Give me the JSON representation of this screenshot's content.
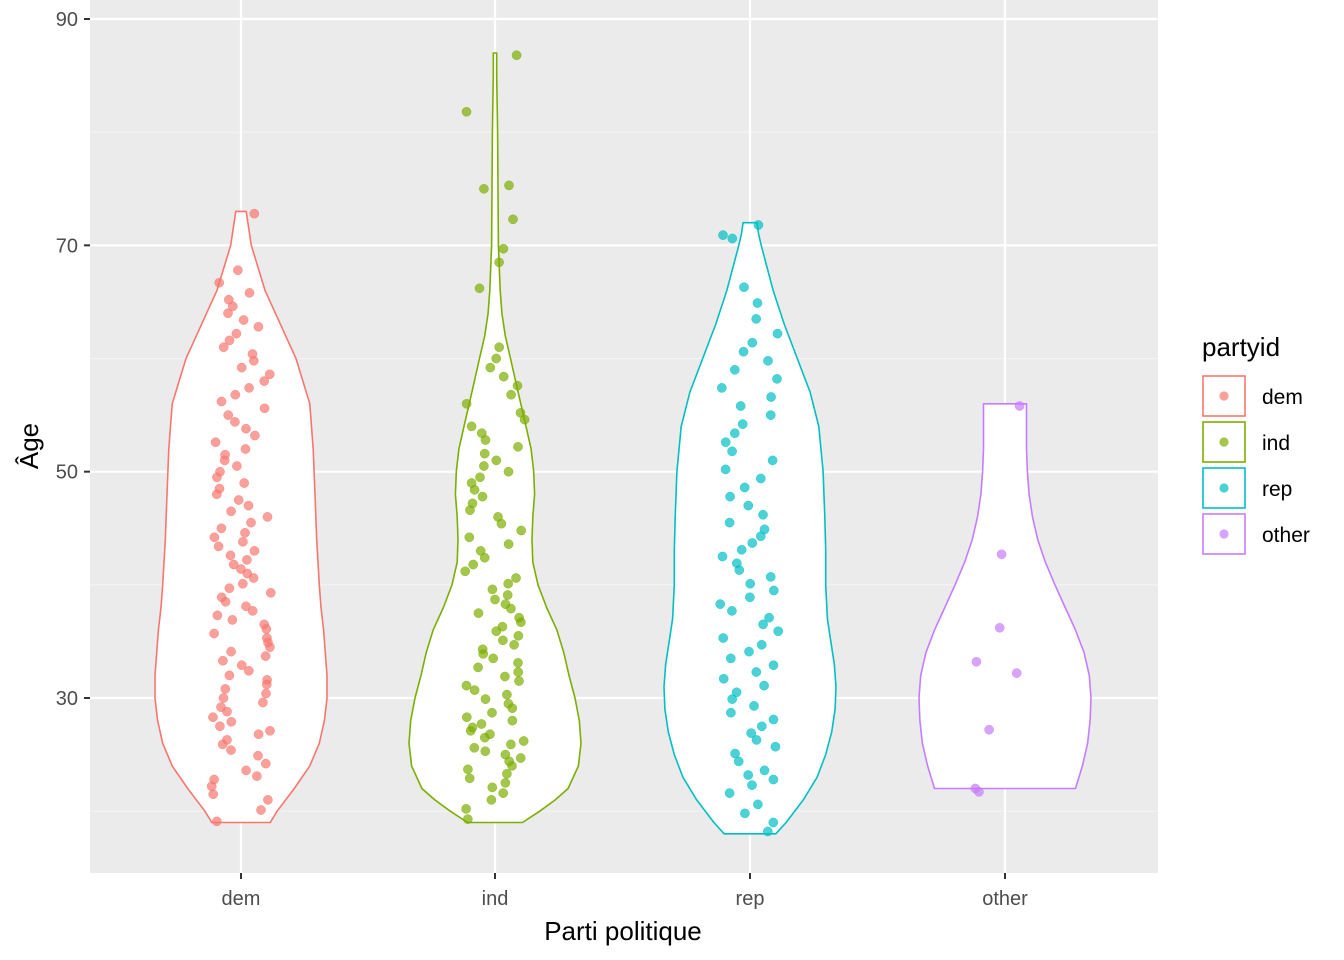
{
  "chart_data": {
    "type": "violin",
    "xlabel": "Parti politique",
    "ylabel": "Âge",
    "categories": [
      "dem",
      "ind",
      "rep",
      "other"
    ],
    "y_ticks": [
      30,
      50,
      70,
      90
    ],
    "y_tick_labels": [
      "30",
      "50",
      "70",
      "90"
    ],
    "ylim": [
      14.5,
      90.2
    ],
    "grid": true,
    "legend": {
      "title": "partyid",
      "position": "right",
      "entries": [
        "dem",
        "ind",
        "rep",
        "other"
      ]
    },
    "colors": {
      "dem": "#F8766D",
      "ind": "#7CAE00",
      "rep": "#00BFC4",
      "other": "#C77CFF",
      "panel": "#EBEBEB",
      "grid_major": "#FFFFFF",
      "grid_minor": "#F5F5F5"
    },
    "series": [
      {
        "name": "dem",
        "min": 19,
        "max": 73,
        "density_profile": [
          [
            19,
            0.34
          ],
          [
            20,
            0.42
          ],
          [
            22,
            0.62
          ],
          [
            24,
            0.8
          ],
          [
            26,
            0.91
          ],
          [
            28,
            0.97
          ],
          [
            30,
            1.0
          ],
          [
            32,
            1.0
          ],
          [
            34,
            0.98
          ],
          [
            36,
            0.96
          ],
          [
            38,
            0.93
          ],
          [
            40,
            0.91
          ],
          [
            44,
            0.88
          ],
          [
            48,
            0.86
          ],
          [
            52,
            0.84
          ],
          [
            56,
            0.8
          ],
          [
            58,
            0.72
          ],
          [
            60,
            0.64
          ],
          [
            62,
            0.52
          ],
          [
            64,
            0.4
          ],
          [
            66,
            0.28
          ],
          [
            68,
            0.2
          ],
          [
            70,
            0.12
          ],
          [
            72,
            0.08
          ],
          [
            73,
            0.06
          ]
        ],
        "points": [
          19.1,
          20.1,
          21,
          21.5,
          22.2,
          22.8,
          23.1,
          23.6,
          24.2,
          24.9,
          25.4,
          25.9,
          26.3,
          26.8,
          27.1,
          27.5,
          27.9,
          28.3,
          28.8,
          29.2,
          29.6,
          30,
          30.4,
          30.8,
          31.2,
          31.6,
          32,
          32.4,
          32.9,
          33.3,
          33.7,
          34.1,
          34.5,
          34.9,
          35.3,
          35.7,
          36.1,
          36.5,
          36.9,
          37.3,
          37.7,
          38.1,
          38.5,
          38.9,
          39.3,
          39.7,
          40.1,
          40.6,
          41,
          41.4,
          41.8,
          42.2,
          42.6,
          43,
          43.4,
          43.8,
          44.2,
          44.6,
          45,
          45.5,
          46,
          46.5,
          47,
          47.5,
          48,
          48.5,
          49,
          49.5,
          50,
          50.5,
          51,
          51.5,
          52,
          52.6,
          53.2,
          53.8,
          54.4,
          55,
          55.6,
          56.2,
          56.8,
          57.4,
          58,
          58.6,
          59.2,
          59.8,
          60.4,
          61,
          61.6,
          62.2,
          62.8,
          63.4,
          64,
          64.6,
          65.2,
          65.8,
          66.7,
          67.8,
          72.8
        ]
      },
      {
        "name": "ind",
        "min": 19,
        "max": 87,
        "density_profile": [
          [
            19,
            0.32
          ],
          [
            20,
            0.52
          ],
          [
            21,
            0.7
          ],
          [
            22,
            0.85
          ],
          [
            24,
            0.97
          ],
          [
            26,
            1.0
          ],
          [
            28,
            0.98
          ],
          [
            30,
            0.93
          ],
          [
            32,
            0.86
          ],
          [
            34,
            0.8
          ],
          [
            36,
            0.72
          ],
          [
            38,
            0.6
          ],
          [
            40,
            0.5
          ],
          [
            42,
            0.44
          ],
          [
            44,
            0.43
          ],
          [
            46,
            0.44
          ],
          [
            48,
            0.46
          ],
          [
            50,
            0.45
          ],
          [
            52,
            0.42
          ],
          [
            54,
            0.36
          ],
          [
            56,
            0.3
          ],
          [
            58,
            0.24
          ],
          [
            60,
            0.18
          ],
          [
            62,
            0.12
          ],
          [
            64,
            0.08
          ],
          [
            66,
            0.06
          ],
          [
            70,
            0.04
          ],
          [
            75,
            0.035
          ],
          [
            80,
            0.03
          ],
          [
            85,
            0.02
          ],
          [
            87,
            0.02
          ]
        ],
        "points": [
          19.3,
          20.2,
          21,
          21.6,
          22.1,
          22.5,
          22.9,
          23.3,
          23.7,
          24,
          24.4,
          24.7,
          25,
          25.3,
          25.6,
          25.9,
          26.2,
          26.5,
          26.8,
          27.1,
          27.4,
          27.7,
          28,
          28.3,
          28.7,
          29.1,
          29.5,
          29.9,
          30.3,
          30.7,
          31.1,
          31.5,
          31.9,
          32.3,
          32.7,
          33.1,
          33.5,
          33.9,
          34.3,
          34.7,
          35.1,
          35.5,
          35.9,
          36.3,
          36.7,
          37.1,
          37.5,
          37.9,
          38.3,
          38.7,
          39.1,
          39.6,
          40.1,
          40.6,
          41.2,
          41.8,
          42.4,
          43,
          43.6,
          44.2,
          44.8,
          45.4,
          46,
          46.6,
          47.2,
          47.8,
          48.4,
          49,
          49.5,
          50,
          50.5,
          51,
          51.6,
          52.2,
          52.8,
          53.4,
          54,
          54.6,
          55.2,
          56,
          56.8,
          57.6,
          58.4,
          59.2,
          60,
          61,
          66.2,
          68.5,
          69.7,
          72.3,
          75,
          75.3,
          81.8,
          86.8
        ]
      },
      {
        "name": "rep",
        "min": 18,
        "max": 72,
        "density_profile": [
          [
            18,
            0.3
          ],
          [
            19,
            0.42
          ],
          [
            21,
            0.62
          ],
          [
            23,
            0.78
          ],
          [
            25,
            0.88
          ],
          [
            27,
            0.95
          ],
          [
            29,
            0.99
          ],
          [
            31,
            1.0
          ],
          [
            33,
            0.98
          ],
          [
            35,
            0.94
          ],
          [
            37,
            0.9
          ],
          [
            40,
            0.88
          ],
          [
            43,
            0.88
          ],
          [
            46,
            0.87
          ],
          [
            50,
            0.85
          ],
          [
            54,
            0.8
          ],
          [
            57,
            0.7
          ],
          [
            60,
            0.55
          ],
          [
            63,
            0.4
          ],
          [
            66,
            0.27
          ],
          [
            68,
            0.2
          ],
          [
            70,
            0.13
          ],
          [
            71,
            0.1
          ],
          [
            72,
            0.08
          ]
        ],
        "points": [
          18.2,
          19,
          19.8,
          20.6,
          21.6,
          22.3,
          22.8,
          23.2,
          23.6,
          24.4,
          25.1,
          25.7,
          26.3,
          26.9,
          27.5,
          28.1,
          28.7,
          29.3,
          29.9,
          30.5,
          31.1,
          31.7,
          32.3,
          32.9,
          33.5,
          34.1,
          34.7,
          35.3,
          35.9,
          36.5,
          37.1,
          37.7,
          38.3,
          38.9,
          39.5,
          40.1,
          40.7,
          41.3,
          41.9,
          42.5,
          43.1,
          43.7,
          44.3,
          44.9,
          45.5,
          46.2,
          47,
          47.8,
          48.6,
          49.4,
          50.2,
          51,
          51.8,
          52.6,
          53.4,
          54.2,
          55,
          55.8,
          56.6,
          57.4,
          58.2,
          59,
          59.8,
          60.6,
          61.4,
          62.2,
          63.5,
          64.9,
          66.3,
          70.6,
          70.9,
          71.8
        ]
      },
      {
        "name": "other",
        "min": 22,
        "max": 56,
        "density_profile": [
          [
            22,
            0.82
          ],
          [
            24,
            0.9
          ],
          [
            26,
            0.96
          ],
          [
            28,
            0.99
          ],
          [
            30,
            1.0
          ],
          [
            32,
            0.98
          ],
          [
            34,
            0.92
          ],
          [
            36,
            0.82
          ],
          [
            38,
            0.7
          ],
          [
            40,
            0.58
          ],
          [
            42,
            0.47
          ],
          [
            44,
            0.38
          ],
          [
            46,
            0.32
          ],
          [
            48,
            0.28
          ],
          [
            50,
            0.26
          ],
          [
            52,
            0.25
          ],
          [
            54,
            0.25
          ],
          [
            56,
            0.25
          ]
        ],
        "points": [
          21.7,
          22,
          27.2,
          32.2,
          33.2,
          36.2,
          42.7,
          55.8
        ]
      }
    ]
  }
}
